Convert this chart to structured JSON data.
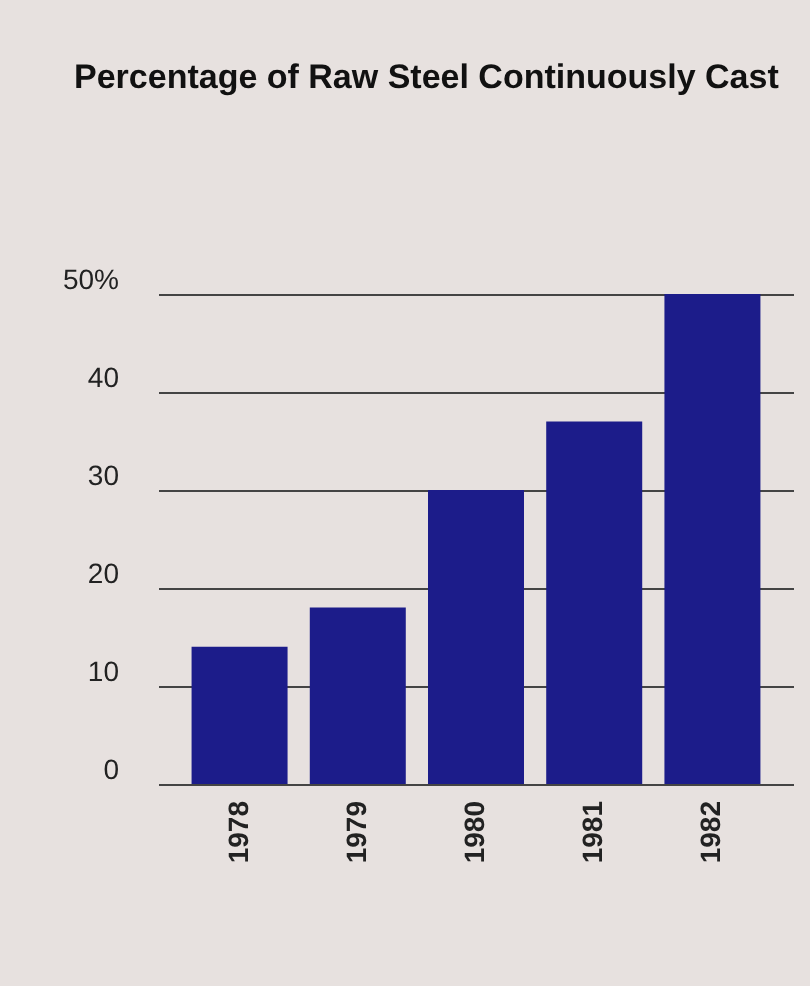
{
  "chart_data": {
    "type": "bar",
    "title": "Percentage of Raw Steel\nContinuously Cast",
    "categories": [
      "1978",
      "1979",
      "1980",
      "1981",
      "1982"
    ],
    "values": [
      14,
      18,
      30,
      37,
      50
    ],
    "color": "#1c1c8a",
    "ylim": [
      0,
      50
    ],
    "yticks": [
      0,
      10,
      20,
      30,
      40,
      {
        "value": 50,
        "label": "50%"
      }
    ],
    "grid": "y"
  }
}
